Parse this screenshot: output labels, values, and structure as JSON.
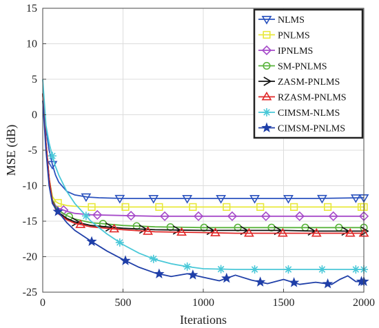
{
  "chart_data": {
    "type": "line",
    "title": "",
    "xlabel": "Iterations",
    "ylabel": "MSE (dB)",
    "xlim": [
      0,
      2000
    ],
    "ylim": [
      -25,
      15
    ],
    "xticks": [
      0,
      500,
      1000,
      1500,
      2000
    ],
    "yticks": [
      15,
      10,
      5,
      0,
      -5,
      -10,
      -15,
      -20,
      -25
    ],
    "grid": true,
    "legend_position": "top-right",
    "series": [
      {
        "name": "NLMS",
        "color": "#2a52be",
        "marker": "triangle-down",
        "x": [
          0,
          20,
          40,
          60,
          80,
          100,
          150,
          200,
          280,
          350,
          500,
          700,
          1000,
          1200,
          1500,
          1700,
          2000
        ],
        "y": [
          2,
          -2,
          -5,
          -7,
          -8.5,
          -9.5,
          -10.8,
          -11.3,
          -11.6,
          -11.7,
          -11.8,
          -11.8,
          -11.8,
          -11.8,
          -11.8,
          -11.8,
          -11.7
        ]
      },
      {
        "name": "PNLMS",
        "color": "#e8e83a",
        "marker": "square",
        "x": [
          0,
          20,
          40,
          60,
          80,
          100,
          150,
          200,
          300,
          500,
          700,
          1000,
          1200,
          1500,
          1700,
          2000
        ],
        "y": [
          2,
          -4,
          -9,
          -11.5,
          -12.2,
          -12.5,
          -12.8,
          -12.9,
          -13,
          -13,
          -13,
          -13,
          -13,
          -13,
          -13,
          -13
        ]
      },
      {
        "name": "IPNLMS",
        "color": "#a64ac9",
        "marker": "diamond",
        "x": [
          0,
          20,
          40,
          60,
          80,
          100,
          150,
          200,
          300,
          500,
          700,
          1000,
          1200,
          1500,
          1700,
          2000
        ],
        "y": [
          3,
          -4,
          -9,
          -12,
          -12.8,
          -13.2,
          -13.6,
          -13.9,
          -14.1,
          -14.2,
          -14.3,
          -14.3,
          -14.3,
          -14.3,
          -14.3,
          -14.3
        ]
      },
      {
        "name": "SM-PNLMS",
        "color": "#59b33b",
        "marker": "circle",
        "x": [
          0,
          20,
          40,
          60,
          80,
          100,
          150,
          200,
          300,
          500,
          700,
          1000,
          1200,
          1500,
          1700,
          2000
        ],
        "y": [
          3,
          -4,
          -9,
          -12,
          -13,
          -13.5,
          -14.2,
          -14.7,
          -15.2,
          -15.6,
          -15.8,
          -15.9,
          -15.9,
          -15.9,
          -15.9,
          -15.9
        ]
      },
      {
        "name": "ZASM-PNLMS",
        "color": "#111111",
        "marker": "triangle-right",
        "x": [
          0,
          20,
          40,
          60,
          80,
          100,
          150,
          200,
          300,
          500,
          700,
          1000,
          1200,
          1500,
          1700,
          2000
        ],
        "y": [
          3,
          -4,
          -9,
          -12.2,
          -13.2,
          -13.8,
          -14.6,
          -15.1,
          -15.6,
          -16,
          -16.2,
          -16.3,
          -16.3,
          -16.3,
          -16.4,
          -16.4
        ]
      },
      {
        "name": "RZASM-PNLMS",
        "color": "#e02828",
        "marker": "triangle-up",
        "x": [
          0,
          20,
          40,
          60,
          80,
          100,
          150,
          200,
          300,
          500,
          700,
          1000,
          1200,
          1500,
          1700,
          2000
        ],
        "y": [
          3,
          -4,
          -9,
          -12.3,
          -13.3,
          -14,
          -14.8,
          -15.3,
          -15.8,
          -16.2,
          -16.5,
          -16.6,
          -16.7,
          -16.7,
          -16.7,
          -16.7
        ]
      },
      {
        "name": "CIMSM-NLMS",
        "color": "#49c8d8",
        "marker": "star",
        "x": [
          0,
          20,
          40,
          60,
          80,
          100,
          150,
          200,
          300,
          400,
          500,
          600,
          700,
          800,
          900,
          1000,
          1200,
          1400,
          1600,
          1800,
          2000
        ],
        "y": [
          5,
          -1.5,
          -4,
          -5.8,
          -7.3,
          -8.5,
          -10.8,
          -12.5,
          -15,
          -16.8,
          -18.3,
          -19.5,
          -20.4,
          -21,
          -21.4,
          -21.7,
          -21.8,
          -21.8,
          -21.8,
          -21.8,
          -21.8
        ]
      },
      {
        "name": "CIMSM-PNLMS",
        "color": "#1f3fa8",
        "marker": "filled-star",
        "x": [
          0,
          20,
          40,
          60,
          80,
          100,
          150,
          200,
          300,
          400,
          500,
          600,
          700,
          800,
          900,
          1000,
          1100,
          1200,
          1300,
          1400,
          1500,
          1600,
          1700,
          1800,
          1850,
          1900,
          1950,
          2000
        ],
        "y": [
          2,
          -5,
          -10,
          -12.5,
          -13.2,
          -13.8,
          -15.2,
          -16.3,
          -17.8,
          -19.2,
          -20.4,
          -21.5,
          -22.3,
          -22.8,
          -22.4,
          -22.9,
          -23.4,
          -22.6,
          -23.3,
          -23.8,
          -23.2,
          -23.9,
          -23.6,
          -23.9,
          -23.2,
          -22.7,
          -23.5,
          -23.5
        ]
      }
    ]
  }
}
